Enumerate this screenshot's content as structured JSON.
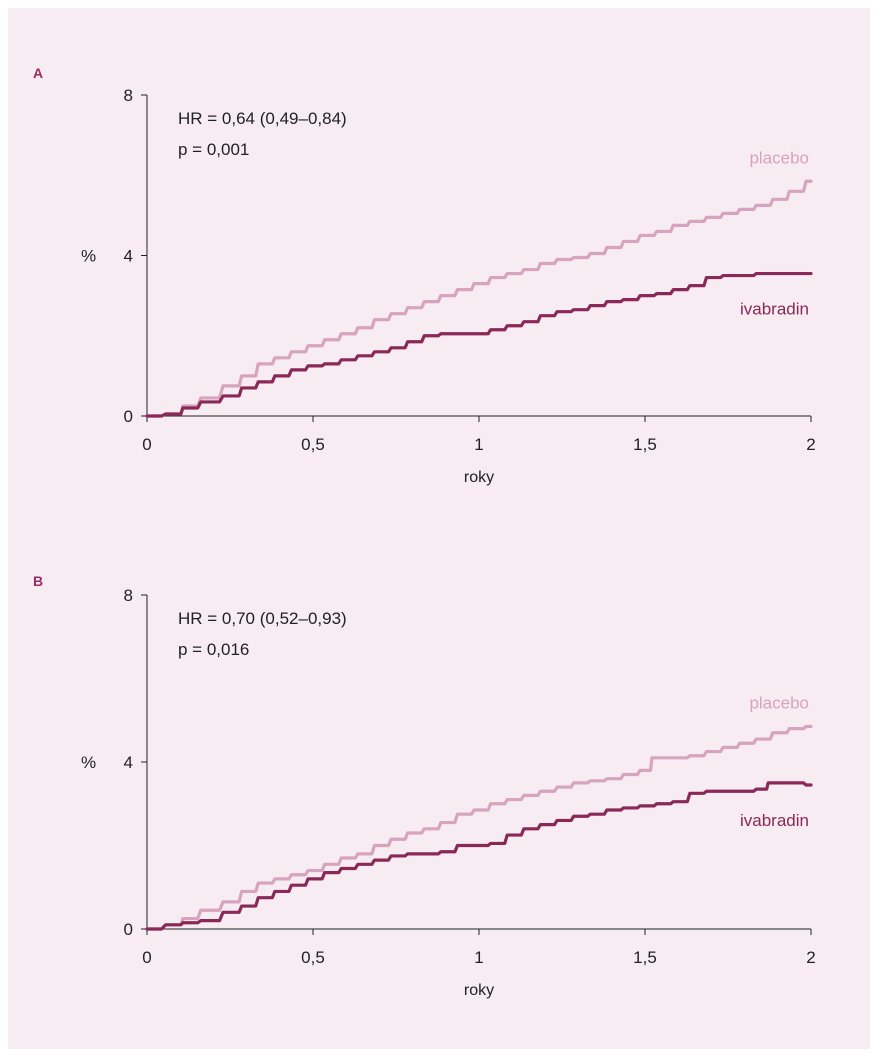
{
  "colors": {
    "background": "#f6ecf2",
    "axis": "#222222",
    "panel_label": "#9b2c63",
    "placebo": "#d8a3bd",
    "ivabradin": "#8a2858",
    "text": "#222222"
  },
  "chart_data": [
    {
      "panel": "A",
      "type": "line",
      "xlabel": "roky",
      "ylabel": "%",
      "xlim": [
        0,
        2
      ],
      "ylim": [
        0,
        8
      ],
      "xticks": [
        "0",
        "0,5",
        "1",
        "1,5",
        "2"
      ],
      "yticks": [
        "0",
        "4",
        "8"
      ],
      "grid": false,
      "annotation": {
        "hr": "HR = 0,64 (0,49–0,84)",
        "p": "p = 0,001"
      },
      "series": [
        {
          "name": "placebo",
          "x": [
            0,
            0.08,
            0.12,
            0.18,
            0.25,
            0.3,
            0.35,
            0.4,
            0.45,
            0.5,
            0.55,
            0.6,
            0.65,
            0.7,
            0.75,
            0.8,
            0.85,
            0.9,
            0.95,
            1.0,
            1.05,
            1.1,
            1.15,
            1.2,
            1.25,
            1.3,
            1.35,
            1.4,
            1.45,
            1.5,
            1.55,
            1.6,
            1.65,
            1.7,
            1.75,
            1.8,
            1.85,
            1.9,
            1.95,
            2.0
          ],
          "values": [
            0,
            0.05,
            0.25,
            0.45,
            0.75,
            1.0,
            1.3,
            1.45,
            1.6,
            1.75,
            1.9,
            2.05,
            2.2,
            2.4,
            2.55,
            2.7,
            2.85,
            3.0,
            3.15,
            3.3,
            3.45,
            3.55,
            3.65,
            3.8,
            3.9,
            3.95,
            4.05,
            4.2,
            4.35,
            4.5,
            4.6,
            4.75,
            4.85,
            4.95,
            5.05,
            5.15,
            5.25,
            5.4,
            5.6,
            5.85
          ]
        },
        {
          "name": "ivabradin",
          "x": [
            0,
            0.08,
            0.12,
            0.18,
            0.25,
            0.3,
            0.35,
            0.4,
            0.45,
            0.5,
            0.55,
            0.6,
            0.65,
            0.7,
            0.75,
            0.8,
            0.85,
            0.9,
            0.95,
            1.0,
            1.05,
            1.1,
            1.15,
            1.2,
            1.25,
            1.3,
            1.35,
            1.4,
            1.45,
            1.5,
            1.55,
            1.6,
            1.65,
            1.7,
            1.75,
            1.8,
            1.85,
            1.9,
            1.95,
            2.0
          ],
          "values": [
            0,
            0.05,
            0.2,
            0.35,
            0.5,
            0.7,
            0.85,
            1.0,
            1.15,
            1.25,
            1.3,
            1.4,
            1.5,
            1.6,
            1.7,
            1.85,
            2.0,
            2.05,
            2.05,
            2.05,
            2.15,
            2.25,
            2.35,
            2.5,
            2.6,
            2.65,
            2.75,
            2.85,
            2.9,
            3.0,
            3.05,
            3.15,
            3.25,
            3.45,
            3.5,
            3.5,
            3.55,
            3.55,
            3.55,
            3.55
          ]
        }
      ]
    },
    {
      "panel": "B",
      "type": "line",
      "xlabel": "roky",
      "ylabel": "%",
      "xlim": [
        0,
        2
      ],
      "ylim": [
        0,
        8
      ],
      "xticks": [
        "0",
        "0,5",
        "1",
        "1,5",
        "2"
      ],
      "yticks": [
        "0",
        "4",
        "8"
      ],
      "grid": false,
      "annotation": {
        "hr": "HR = 0,70 (0,52–0,93)",
        "p": "p = 0,016"
      },
      "series": [
        {
          "name": "placebo",
          "x": [
            0,
            0.08,
            0.12,
            0.18,
            0.25,
            0.3,
            0.35,
            0.4,
            0.45,
            0.5,
            0.55,
            0.6,
            0.65,
            0.7,
            0.75,
            0.8,
            0.85,
            0.9,
            0.95,
            1.0,
            1.05,
            1.1,
            1.15,
            1.2,
            1.25,
            1.3,
            1.35,
            1.4,
            1.45,
            1.5,
            1.53,
            1.6,
            1.65,
            1.7,
            1.75,
            1.8,
            1.85,
            1.9,
            1.95,
            2.0
          ],
          "values": [
            0,
            0.1,
            0.25,
            0.45,
            0.65,
            0.9,
            1.1,
            1.2,
            1.3,
            1.4,
            1.55,
            1.7,
            1.8,
            2.0,
            2.15,
            2.3,
            2.4,
            2.55,
            2.75,
            2.85,
            3.0,
            3.1,
            3.2,
            3.3,
            3.4,
            3.5,
            3.55,
            3.6,
            3.7,
            3.8,
            4.1,
            4.1,
            4.15,
            4.25,
            4.35,
            4.45,
            4.55,
            4.7,
            4.8,
            4.85
          ]
        },
        {
          "name": "ivabradin",
          "x": [
            0,
            0.08,
            0.12,
            0.18,
            0.25,
            0.3,
            0.35,
            0.4,
            0.45,
            0.5,
            0.55,
            0.6,
            0.65,
            0.7,
            0.75,
            0.8,
            0.85,
            0.9,
            0.95,
            1.0,
            1.05,
            1.1,
            1.15,
            1.2,
            1.25,
            1.3,
            1.35,
            1.4,
            1.45,
            1.5,
            1.55,
            1.6,
            1.65,
            1.7,
            1.75,
            1.8,
            1.85,
            1.88,
            1.95,
            2.0
          ],
          "values": [
            0,
            0.1,
            0.15,
            0.2,
            0.4,
            0.55,
            0.75,
            0.9,
            1.05,
            1.2,
            1.35,
            1.45,
            1.55,
            1.65,
            1.75,
            1.8,
            1.8,
            1.85,
            2.0,
            2.0,
            2.05,
            2.25,
            2.4,
            2.5,
            2.6,
            2.7,
            2.75,
            2.85,
            2.9,
            2.95,
            3.0,
            3.05,
            3.25,
            3.3,
            3.3,
            3.3,
            3.35,
            3.5,
            3.5,
            3.45
          ]
        }
      ]
    }
  ]
}
